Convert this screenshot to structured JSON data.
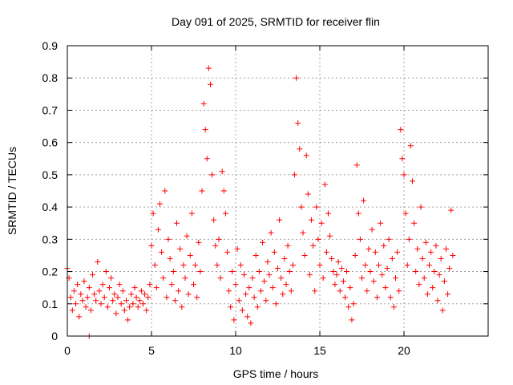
{
  "chart_data": {
    "type": "scatter",
    "title": "Day 091 of 2025, SRMTID for receiver flin",
    "xlabel": "GPS time / hours",
    "ylabel": "SRMTID / TECUs",
    "xlim": [
      0,
      25
    ],
    "ylim": [
      0,
      0.9
    ],
    "xticks": [
      0,
      5,
      10,
      15,
      20
    ],
    "yticks": [
      0,
      0.1,
      0.2,
      0.3,
      0.4,
      0.5,
      0.6,
      0.7,
      0.8,
      0.9
    ],
    "grid": true,
    "marker": "+",
    "color": "#ff0000",
    "series": [
      {
        "name": "flin",
        "points": [
          [
            0.0,
            0.21
          ],
          [
            0.1,
            0.18
          ],
          [
            0.2,
            0.12
          ],
          [
            0.3,
            0.08
          ],
          [
            0.4,
            0.14
          ],
          [
            0.5,
            0.1
          ],
          [
            0.6,
            0.16
          ],
          [
            0.7,
            0.06
          ],
          [
            0.8,
            0.13
          ],
          [
            0.9,
            0.11
          ],
          [
            1.0,
            0.17
          ],
          [
            1.1,
            0.09
          ],
          [
            1.2,
            0.12
          ],
          [
            1.3,
            0.15
          ],
          [
            1.4,
            0.08
          ],
          [
            1.5,
            0.19
          ],
          [
            1.6,
            0.13
          ],
          [
            1.7,
            0.11
          ],
          [
            1.8,
            0.23
          ],
          [
            1.9,
            0.14
          ],
          [
            2.0,
            0.1
          ],
          [
            2.1,
            0.16
          ],
          [
            2.2,
            0.12
          ],
          [
            2.3,
            0.2
          ],
          [
            2.4,
            0.09
          ],
          [
            2.5,
            0.15
          ],
          [
            2.6,
            0.18
          ],
          [
            2.7,
            0.11
          ],
          [
            2.8,
            0.13
          ],
          [
            2.9,
            0.07
          ],
          [
            3.0,
            0.12
          ],
          [
            3.1,
            0.16
          ],
          [
            3.2,
            0.1
          ],
          [
            3.3,
            0.14
          ],
          [
            3.4,
            0.08
          ],
          [
            3.5,
            0.11
          ],
          [
            3.6,
            0.05
          ],
          [
            3.7,
            0.09
          ],
          [
            3.8,
            0.13
          ],
          [
            3.9,
            0.1
          ],
          [
            4.0,
            0.15
          ],
          [
            4.1,
            0.12
          ],
          [
            4.2,
            0.09
          ],
          [
            4.3,
            0.11
          ],
          [
            4.4,
            0.14
          ],
          [
            4.5,
            0.1
          ],
          [
            4.6,
            0.13
          ],
          [
            4.7,
            0.08
          ],
          [
            4.8,
            0.12
          ],
          [
            4.9,
            0.16
          ],
          [
            5.0,
            0.28
          ],
          [
            5.1,
            0.38
          ],
          [
            5.2,
            0.22
          ],
          [
            5.3,
            0.15
          ],
          [
            5.4,
            0.33
          ],
          [
            5.5,
            0.41
          ],
          [
            5.6,
            0.26
          ],
          [
            5.7,
            0.18
          ],
          [
            5.8,
            0.45
          ],
          [
            5.9,
            0.12
          ],
          [
            6.0,
            0.3
          ],
          [
            6.1,
            0.24
          ],
          [
            6.2,
            0.16
          ],
          [
            6.3,
            0.2
          ],
          [
            6.4,
            0.11
          ],
          [
            6.5,
            0.35
          ],
          [
            6.6,
            0.14
          ],
          [
            6.7,
            0.27
          ],
          [
            6.8,
            0.09
          ],
          [
            6.9,
            0.22
          ],
          [
            7.0,
            0.18
          ],
          [
            7.1,
            0.31
          ],
          [
            7.2,
            0.13
          ],
          [
            7.3,
            0.25
          ],
          [
            7.4,
            0.38
          ],
          [
            7.5,
            0.16
          ],
          [
            7.6,
            0.22
          ],
          [
            7.7,
            0.12
          ],
          [
            7.8,
            0.29
          ],
          [
            7.9,
            0.2
          ],
          [
            8.0,
            0.45
          ],
          [
            8.1,
            0.72
          ],
          [
            8.2,
            0.64
          ],
          [
            8.3,
            0.55
          ],
          [
            8.4,
            0.83
          ],
          [
            8.5,
            0.78
          ],
          [
            8.6,
            0.5
          ],
          [
            8.7,
            0.36
          ],
          [
            8.8,
            0.28
          ],
          [
            8.9,
            0.22
          ],
          [
            9.0,
            0.3
          ],
          [
            9.1,
            0.18
          ],
          [
            9.2,
            0.51
          ],
          [
            9.3,
            0.45
          ],
          [
            9.4,
            0.38
          ],
          [
            9.5,
            0.26
          ],
          [
            9.6,
            0.14
          ],
          [
            9.7,
            0.09
          ],
          [
            9.8,
            0.2
          ],
          [
            9.9,
            0.05
          ],
          [
            10.0,
            0.16
          ],
          [
            10.1,
            0.27
          ],
          [
            10.2,
            0.11
          ],
          [
            10.3,
            0.22
          ],
          [
            10.4,
            0.08
          ],
          [
            10.5,
            0.19
          ],
          [
            10.6,
            0.13
          ],
          [
            10.7,
            0.06
          ],
          [
            10.8,
            0.15
          ],
          [
            10.9,
            0.04
          ],
          [
            11.0,
            0.18
          ],
          [
            11.1,
            0.12
          ],
          [
            11.2,
            0.25
          ],
          [
            11.3,
            0.09
          ],
          [
            11.4,
            0.2
          ],
          [
            11.5,
            0.14
          ],
          [
            11.6,
            0.29
          ],
          [
            11.7,
            0.17
          ],
          [
            11.8,
            0.11
          ],
          [
            11.9,
            0.23
          ],
          [
            12.0,
            0.19
          ],
          [
            12.1,
            0.32
          ],
          [
            12.2,
            0.15
          ],
          [
            12.3,
            0.26
          ],
          [
            12.4,
            0.1
          ],
          [
            12.5,
            0.21
          ],
          [
            12.6,
            0.36
          ],
          [
            12.7,
            0.18
          ],
          [
            12.8,
            0.13
          ],
          [
            12.9,
            0.24
          ],
          [
            13.0,
            0.16
          ],
          [
            13.1,
            0.28
          ],
          [
            13.2,
            0.2
          ],
          [
            13.3,
            0.14
          ],
          [
            13.4,
            0.22
          ],
          [
            13.5,
            0.5
          ],
          [
            13.6,
            0.8
          ],
          [
            13.7,
            0.66
          ],
          [
            13.8,
            0.58
          ],
          [
            13.9,
            0.4
          ],
          [
            14.0,
            0.32
          ],
          [
            14.1,
            0.25
          ],
          [
            14.2,
            0.56
          ],
          [
            14.3,
            0.44
          ],
          [
            14.4,
            0.19
          ],
          [
            14.5,
            0.36
          ],
          [
            14.6,
            0.28
          ],
          [
            14.7,
            0.14
          ],
          [
            14.8,
            0.4
          ],
          [
            14.9,
            0.3
          ],
          [
            15.0,
            0.22
          ],
          [
            15.1,
            0.35
          ],
          [
            15.2,
            0.18
          ],
          [
            15.3,
            0.47
          ],
          [
            15.4,
            0.26
          ],
          [
            15.5,
            0.38
          ],
          [
            15.6,
            0.31
          ],
          [
            15.7,
            0.24
          ],
          [
            15.8,
            0.2
          ],
          [
            15.9,
            0.16
          ],
          [
            16.0,
            0.19
          ],
          [
            16.1,
            0.23
          ],
          [
            16.2,
            0.14
          ],
          [
            16.3,
            0.21
          ],
          [
            16.4,
            0.17
          ],
          [
            16.5,
            0.12
          ],
          [
            16.6,
            0.2
          ],
          [
            16.7,
            0.09
          ],
          [
            16.8,
            0.15
          ],
          [
            16.9,
            0.05
          ],
          [
            17.0,
            0.1
          ],
          [
            17.1,
            0.25
          ],
          [
            17.2,
            0.53
          ],
          [
            17.3,
            0.38
          ],
          [
            17.4,
            0.3
          ],
          [
            17.5,
            0.18
          ],
          [
            17.6,
            0.42
          ],
          [
            17.7,
            0.22
          ],
          [
            17.8,
            0.14
          ],
          [
            17.9,
            0.27
          ],
          [
            18.0,
            0.2
          ],
          [
            18.1,
            0.33
          ],
          [
            18.2,
            0.17
          ],
          [
            18.3,
            0.26
          ],
          [
            18.4,
            0.12
          ],
          [
            18.5,
            0.22
          ],
          [
            18.6,
            0.35
          ],
          [
            18.7,
            0.19
          ],
          [
            18.8,
            0.28
          ],
          [
            18.9,
            0.15
          ],
          [
            19.0,
            0.21
          ],
          [
            19.1,
            0.3
          ],
          [
            19.2,
            0.12
          ],
          [
            19.3,
            0.24
          ],
          [
            19.4,
            0.09
          ],
          [
            19.5,
            0.18
          ],
          [
            19.6,
            0.26
          ],
          [
            19.7,
            0.14
          ],
          [
            19.8,
            0.64
          ],
          [
            19.9,
            0.55
          ],
          [
            20.0,
            0.5
          ],
          [
            20.1,
            0.38
          ],
          [
            20.2,
            0.22
          ],
          [
            20.3,
            0.3
          ],
          [
            20.4,
            0.59
          ],
          [
            20.5,
            0.48
          ],
          [
            20.6,
            0.35
          ],
          [
            20.7,
            0.2
          ],
          [
            20.8,
            0.27
          ],
          [
            20.9,
            0.16
          ],
          [
            21.0,
            0.4
          ],
          [
            21.1,
            0.24
          ],
          [
            21.2,
            0.18
          ],
          [
            21.3,
            0.29
          ],
          [
            21.4,
            0.13
          ],
          [
            21.5,
            0.22
          ],
          [
            21.6,
            0.26
          ],
          [
            21.7,
            0.15
          ],
          [
            21.8,
            0.2
          ],
          [
            21.9,
            0.28
          ],
          [
            22.0,
            0.11
          ],
          [
            22.1,
            0.19
          ],
          [
            22.2,
            0.24
          ],
          [
            22.3,
            0.08
          ],
          [
            22.4,
            0.17
          ],
          [
            22.5,
            0.27
          ],
          [
            22.6,
            0.13
          ],
          [
            22.7,
            0.21
          ],
          [
            22.8,
            0.39
          ],
          [
            22.9,
            0.25
          ],
          [
            1.3,
            0.0
          ]
        ]
      }
    ]
  }
}
